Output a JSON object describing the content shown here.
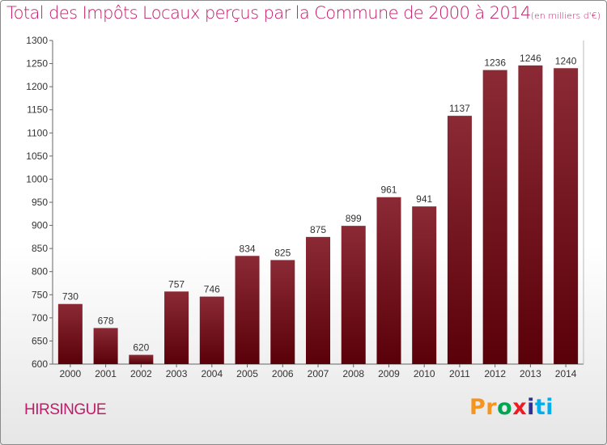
{
  "title": "Total des Impôts Locaux perçus par la Commune de 2000 à 2014",
  "title_unit": "(en milliers d'€)",
  "commune": "HIRSINGUE",
  "logo": {
    "letters": [
      "P",
      "r",
      "o",
      "x",
      "i",
      "t",
      "i"
    ],
    "colors": [
      "#f7941d",
      "#f7941d",
      "#00a651",
      "#ed1c24",
      "#2e3192",
      "#00aeef",
      "#00aeef"
    ]
  },
  "colors": {
    "accent": "#c21a68",
    "bar_top": "#8b2a35",
    "bar_bottom": "#5a0008"
  },
  "chart_data": {
    "type": "bar",
    "categories": [
      "2000",
      "2001",
      "2002",
      "2003",
      "2004",
      "2005",
      "2006",
      "2007",
      "2008",
      "2009",
      "2010",
      "2011",
      "2012",
      "2013",
      "2014"
    ],
    "values": [
      730,
      678,
      620,
      757,
      746,
      834,
      825,
      875,
      899,
      961,
      941,
      1137,
      1236,
      1246,
      1240
    ],
    "ylim": [
      600,
      1300
    ],
    "yticks": [
      600,
      650,
      700,
      750,
      800,
      850,
      900,
      950,
      1000,
      1050,
      1100,
      1150,
      1200,
      1250,
      1300
    ],
    "grid": false,
    "legend": "none"
  }
}
